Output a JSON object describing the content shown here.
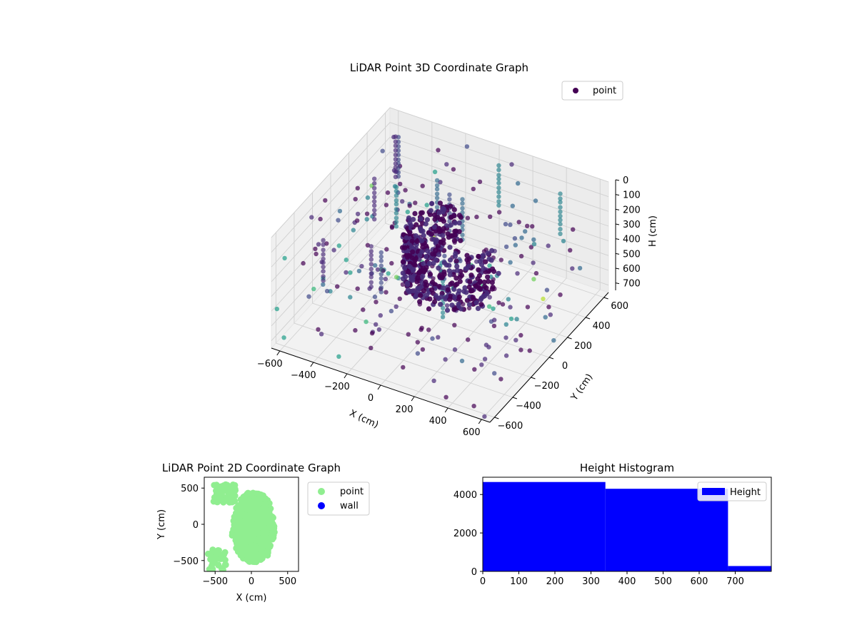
{
  "chart_data": [
    {
      "type": "scatter",
      "title": "LiDAR Point 3D Coordinate Graph",
      "xlabel": "X (cm)",
      "ylabel": "Y (cm)",
      "zlabel": "H (cm)",
      "xlim": [
        -650,
        650
      ],
      "ylim": [
        -650,
        650
      ],
      "zlim": [
        750,
        0
      ],
      "x_ticks": [
        -600,
        -400,
        -200,
        0,
        200,
        400,
        600
      ],
      "y_ticks": [
        -600,
        -400,
        -200,
        0,
        200,
        400,
        600
      ],
      "z_ticks": [
        0,
        100,
        200,
        300,
        400,
        500,
        600,
        700
      ],
      "z_inverted": true,
      "colormap": "viridis",
      "legend": {
        "placement": "top-right",
        "entries": [
          {
            "label": "point",
            "color": "#440154"
          }
        ]
      },
      "grid": true,
      "structure_ring": {
        "center": [
          60,
          40
        ],
        "radius": 240,
        "arc_deg": [
          110,
          360
        ],
        "h_range": [
          150,
          500
        ]
      },
      "scatter_sample_spread": 650
    },
    {
      "type": "scatter",
      "title": "LiDAR Point 2D Coordinate Graph",
      "xlabel": "X (cm)",
      "ylabel": "Y (cm)",
      "xlim": [
        -650,
        650
      ],
      "ylim": [
        -650,
        650
      ],
      "x_ticks": [
        -500,
        0,
        500
      ],
      "y_ticks": [
        -500,
        0,
        500
      ],
      "series": [
        {
          "name": "point",
          "color": "#90ee90",
          "count": 900
        },
        {
          "name": "wall",
          "color": "#0000ff",
          "count": 0
        }
      ],
      "legend": {
        "placement": "outside-right"
      }
    },
    {
      "type": "bar",
      "title": "Height Histogram",
      "xlim": [
        0,
        800
      ],
      "ylim": [
        0,
        4900
      ],
      "x_ticks": [
        0,
        100,
        200,
        300,
        400,
        500,
        600,
        700
      ],
      "y_ticks": [
        0,
        2000,
        4000
      ],
      "bins": [
        {
          "from": 0,
          "to": 340,
          "count": 4650
        },
        {
          "from": 340,
          "to": 680,
          "count": 4300
        },
        {
          "from": 680,
          "to": 800,
          "count": 280
        }
      ],
      "color": "#0000ff",
      "legend": {
        "placement": "top-right",
        "entries": [
          {
            "label": "Height",
            "color": "#0000ff"
          }
        ]
      }
    }
  ]
}
